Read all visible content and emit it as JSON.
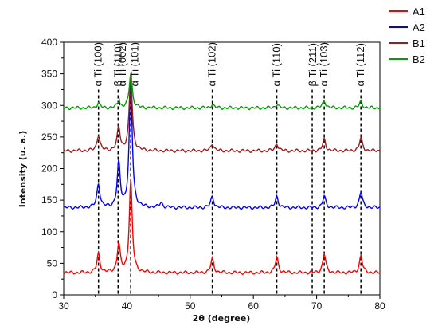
{
  "chart_data": {
    "type": "line",
    "xlabel": "2θ (degree)",
    "ylabel": "Intensity (u. a.)",
    "xlim": [
      30,
      80
    ],
    "ylim": [
      0,
      400
    ],
    "x_ticks": [
      "30",
      "40",
      "50",
      "60",
      "70",
      "80"
    ],
    "y_ticks": [
      "0",
      "50",
      "100",
      "150",
      "200",
      "250",
      "300",
      "350",
      "400"
    ],
    "grid": false,
    "legend_position": "top-right",
    "series": [
      {
        "name": "A1",
        "color": "#ff0000",
        "baseline": 35,
        "peaks": [
          [
            35.5,
            30
          ],
          [
            38.7,
            45
          ],
          [
            40.6,
            145
          ],
          [
            53.5,
            22
          ],
          [
            63.7,
            25
          ],
          [
            71.2,
            30
          ],
          [
            77.0,
            27
          ]
        ]
      },
      {
        "name": "A2",
        "color": "#0000ff",
        "baseline": 138,
        "peaks": [
          [
            35.5,
            38
          ],
          [
            38.7,
            70
          ],
          [
            40.6,
            200
          ],
          [
            45.4,
            8
          ],
          [
            53.5,
            18
          ],
          [
            63.7,
            18
          ],
          [
            71.2,
            18
          ],
          [
            77.0,
            25
          ]
        ]
      },
      {
        "name": "B1",
        "color": "#9b1c1c",
        "baseline": 228,
        "peaks": [
          [
            35.5,
            25
          ],
          [
            38.7,
            37
          ],
          [
            40.6,
            120
          ],
          [
            53.5,
            12
          ],
          [
            63.7,
            12
          ],
          [
            71.2,
            18
          ],
          [
            77.0,
            20
          ]
        ]
      },
      {
        "name": "B2",
        "color": "#00a000",
        "baseline": 296,
        "peaks": [
          [
            35.5,
            8
          ],
          [
            38.7,
            10
          ],
          [
            40.6,
            55
          ],
          [
            53.5,
            6
          ],
          [
            63.7,
            6
          ],
          [
            71.2,
            12
          ],
          [
            77.0,
            10
          ]
        ]
      }
    ],
    "peak_labels": [
      {
        "x": 35.5,
        "text": "α Ti (100)"
      },
      {
        "x": 38.6,
        "text": "β Ti (110)"
      },
      {
        "x": 39.3,
        "text": "α Ti (002)"
      },
      {
        "x": 41.3,
        "text": "α Ti (101)"
      },
      {
        "x": 53.5,
        "text": "α Ti (102)"
      },
      {
        "x": 63.7,
        "text": "α Ti (110)"
      },
      {
        "x": 69.4,
        "text": "β Ti (211)"
      },
      {
        "x": 71.2,
        "text": "α Ti (103)"
      },
      {
        "x": 77.0,
        "text": "α Ti (112)"
      }
    ],
    "reference_lines_x": [
      35.5,
      38.6,
      40.6,
      53.5,
      63.7,
      69.3,
      71.2,
      77.0
    ]
  }
}
